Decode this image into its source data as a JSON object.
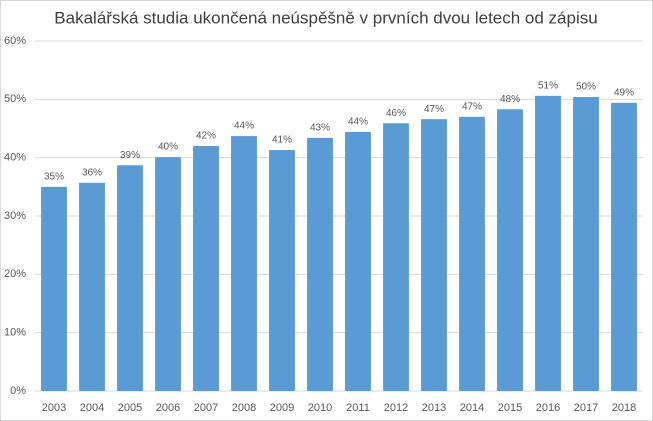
{
  "chart_data": {
    "type": "bar",
    "title": "Bakalářská studia ukončená neúspěšně v prvních dvou letech od zápisu",
    "categories": [
      "2003",
      "2004",
      "2005",
      "2006",
      "2007",
      "2008",
      "2009",
      "2010",
      "2011",
      "2012",
      "2013",
      "2014",
      "2015",
      "2016",
      "2017",
      "2018"
    ],
    "values": [
      35.0,
      35.7,
      38.7,
      40.1,
      42.0,
      43.7,
      41.3,
      43.4,
      44.4,
      45.9,
      46.6,
      47.0,
      48.3,
      50.6,
      50.4,
      49.4
    ],
    "value_labels": [
      "35%",
      "36%",
      "39%",
      "40%",
      "42%",
      "44%",
      "41%",
      "43%",
      "44%",
      "46%",
      "47%",
      "47%",
      "48%",
      "51%",
      "50%",
      "49%"
    ],
    "color": "#5b9bd5",
    "ylim": [
      0,
      60
    ],
    "yticks": [
      {
        "value": 0,
        "label": "0%"
      },
      {
        "value": 10,
        "label": "10%"
      },
      {
        "value": 20,
        "label": "20%"
      },
      {
        "value": 30,
        "label": "30%"
      },
      {
        "value": 40,
        "label": "40%"
      },
      {
        "value": 50,
        "label": "50%"
      },
      {
        "value": 60,
        "label": "60%"
      }
    ],
    "grid": true
  }
}
